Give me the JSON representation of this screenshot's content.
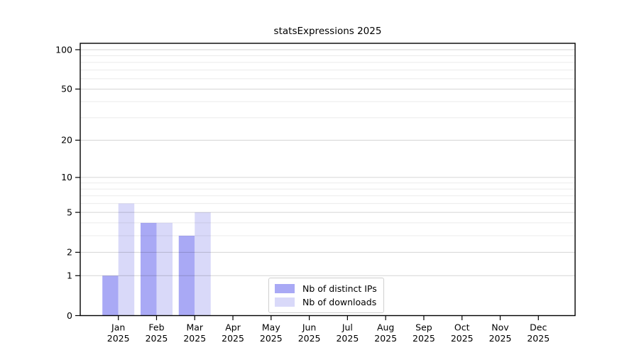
{
  "chart_data": {
    "type": "bar",
    "title": "statsExpressions 2025",
    "categories": [
      "Jan 2025",
      "Feb 2025",
      "Mar 2025",
      "Apr 2025",
      "May 2025",
      "Jun 2025",
      "Jul 2025",
      "Aug 2025",
      "Sep 2025",
      "Oct 2025",
      "Nov 2025",
      "Dec 2025"
    ],
    "series": [
      {
        "name": "Nb of distinct IPs",
        "color": "#a9a9f5",
        "values": [
          1,
          4,
          3,
          0,
          0,
          0,
          0,
          0,
          0,
          0,
          0,
          0
        ]
      },
      {
        "name": "Nb of downloads",
        "color": "#d9d9f9",
        "values": [
          6,
          4,
          5,
          0,
          0,
          0,
          0,
          0,
          0,
          0,
          0,
          0
        ]
      }
    ],
    "xlabel": "",
    "ylabel": "",
    "yscale": "log10(1+v)",
    "y_ticks": [
      0,
      1,
      2,
      5,
      10,
      20,
      50,
      100
    ],
    "y_gridline_values": [
      1,
      2,
      3,
      4,
      5,
      6,
      7,
      8,
      9,
      10,
      20,
      30,
      40,
      50,
      60,
      70,
      80,
      90,
      100
    ],
    "ylim": [
      0,
      112
    ],
    "grid": true,
    "legend_position": "lower center",
    "colors": {
      "axis": "#000000",
      "grid_major": "#d6d6d6",
      "grid_minor": "#ececec",
      "background": "#ffffff"
    }
  }
}
